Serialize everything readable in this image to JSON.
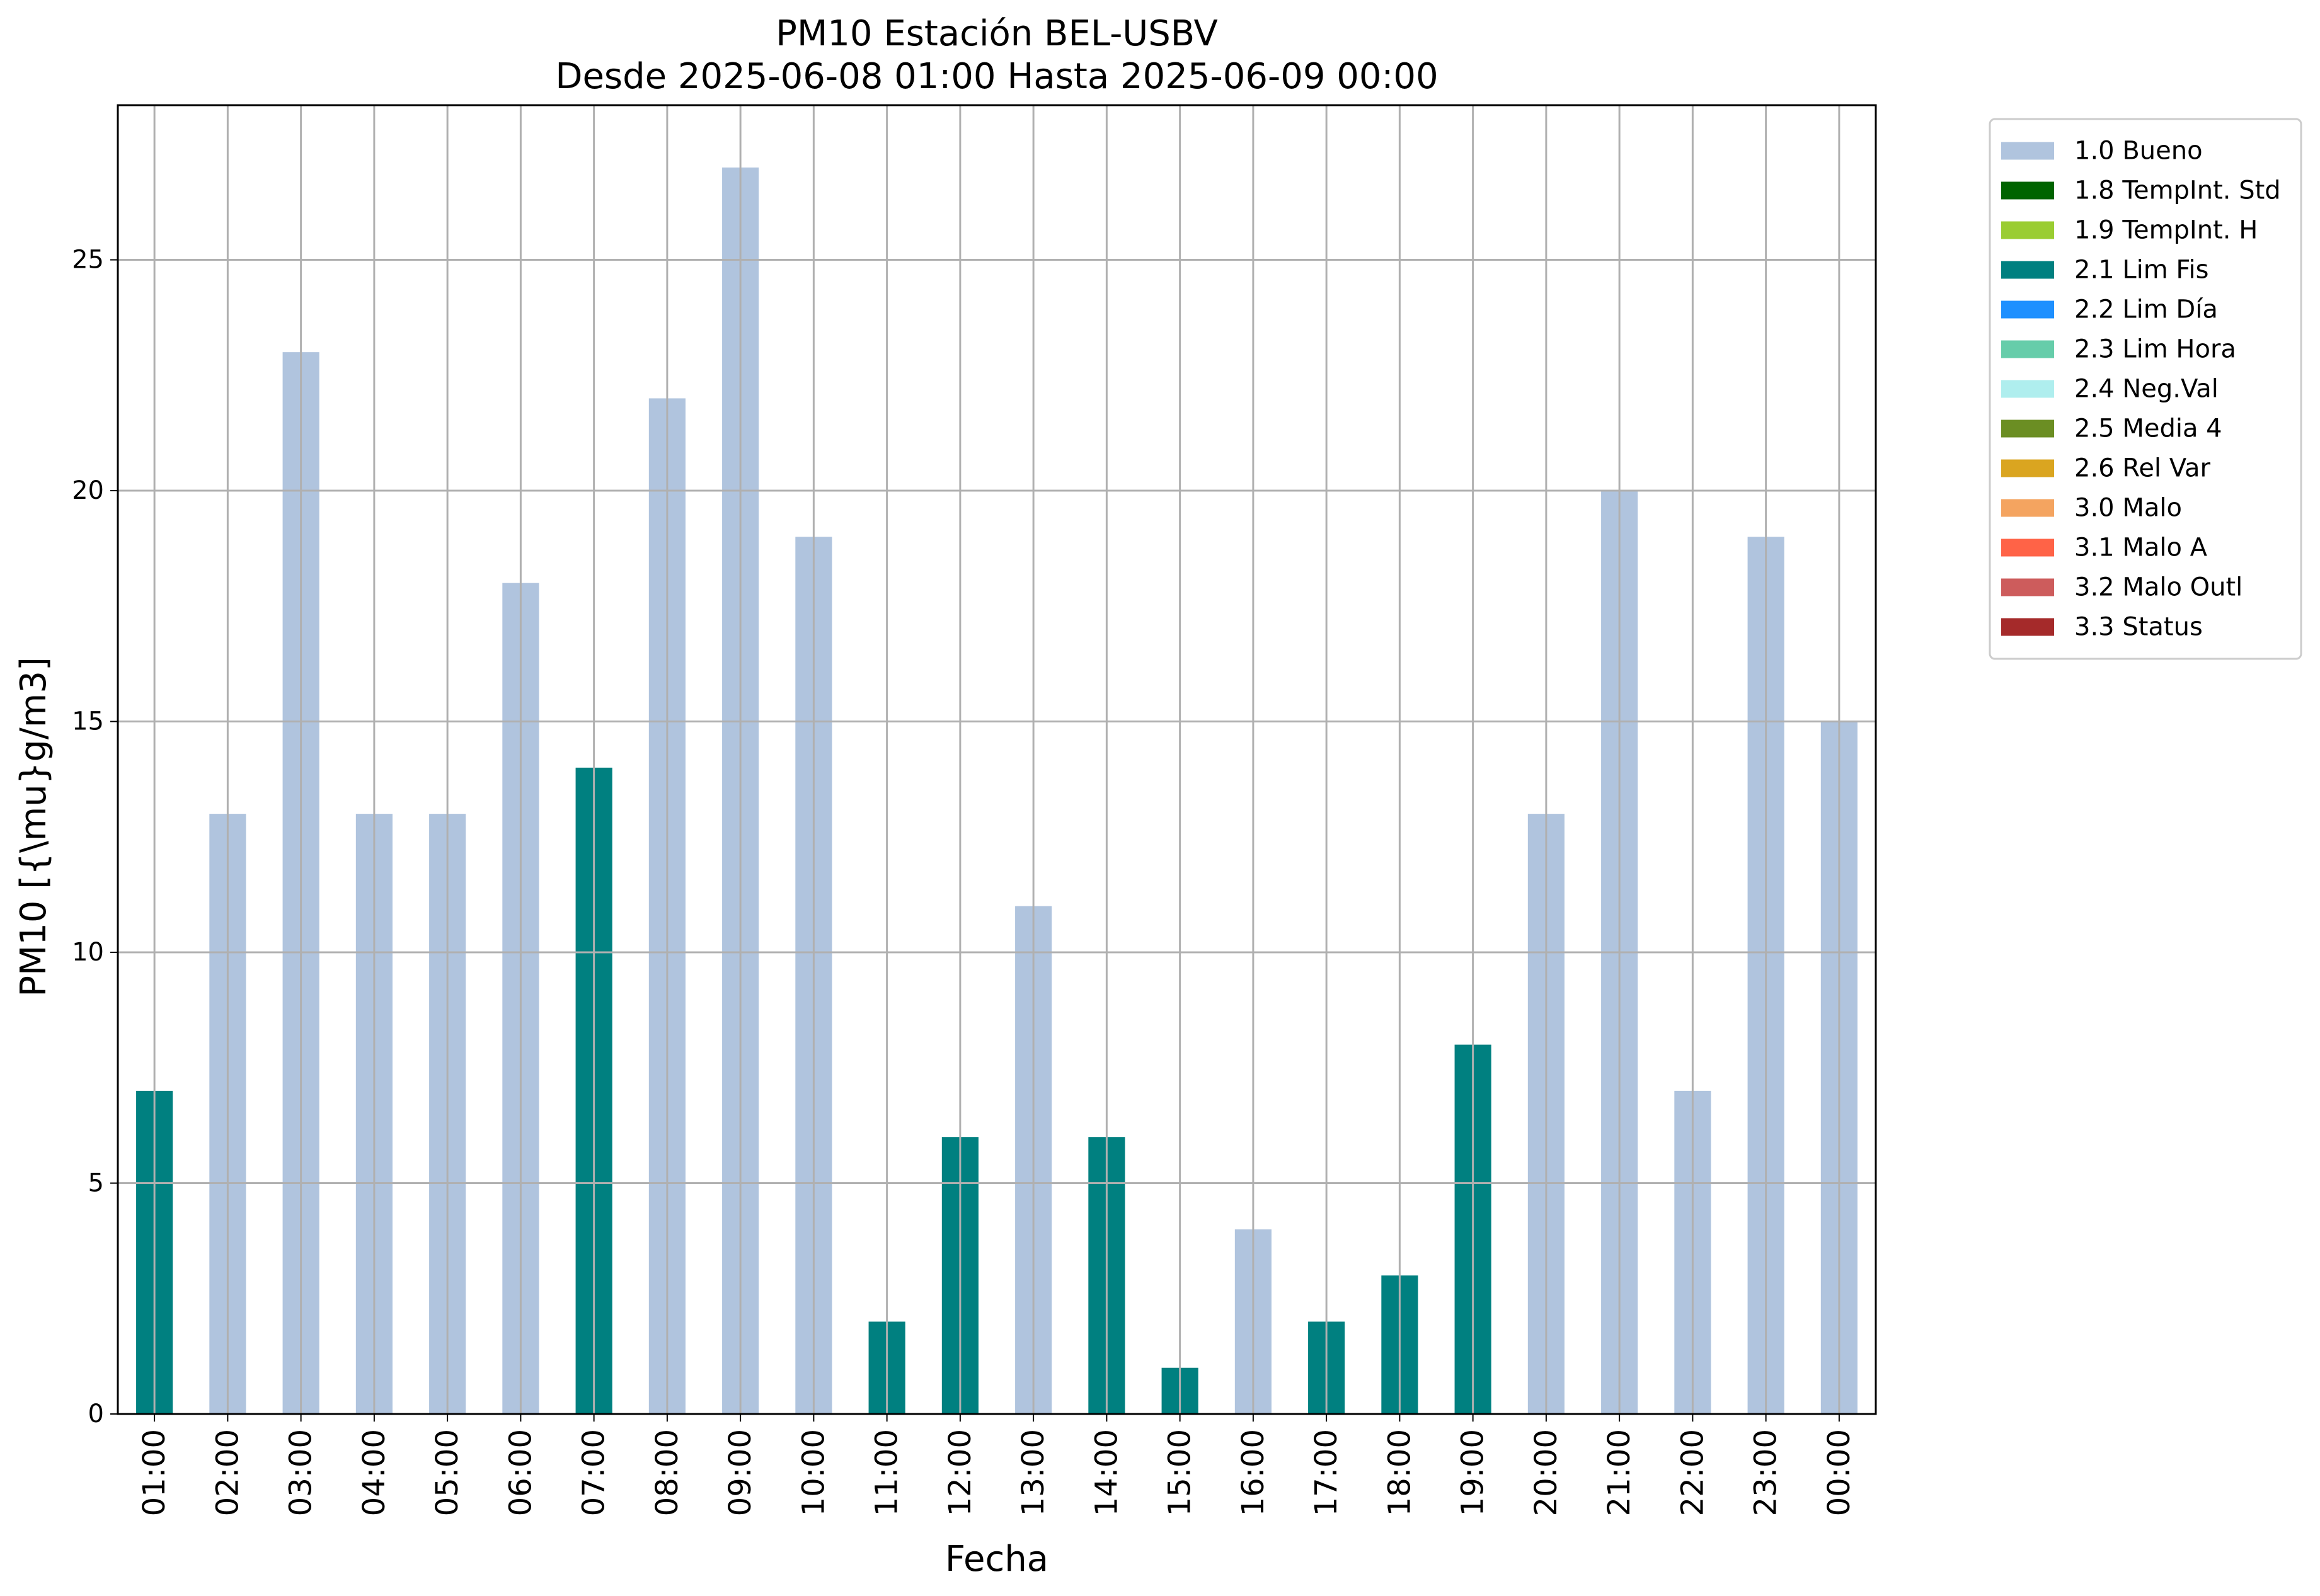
{
  "colors": {
    "grid": "#b0b0b0",
    "axes": "#000000",
    "legend_border": "#cccccc"
  },
  "chart_data": {
    "type": "bar",
    "title": "PM10 Estación BEL-USBV",
    "subtitle": "Desde 2025-06-08 01:00 Hasta 2025-06-09 00:00",
    "xlabel": "Fecha",
    "ylabel": "PM10 [{\\mu}g/m3]",
    "ylim": [
      0,
      28.35
    ],
    "yticks": [
      0,
      5,
      10,
      15,
      20,
      25
    ],
    "grid": true,
    "legend_position": "outside top-right",
    "categories": [
      "01:00",
      "02:00",
      "03:00",
      "04:00",
      "05:00",
      "06:00",
      "07:00",
      "08:00",
      "09:00",
      "10:00",
      "11:00",
      "12:00",
      "13:00",
      "14:00",
      "15:00",
      "16:00",
      "17:00",
      "18:00",
      "19:00",
      "20:00",
      "21:00",
      "22:00",
      "23:00",
      "00:00"
    ],
    "values": [
      7,
      13,
      23,
      13,
      13,
      18,
      14,
      22,
      27,
      19,
      2,
      6,
      11,
      6,
      1,
      4,
      2,
      3,
      8,
      13,
      20,
      7,
      19,
      15
    ],
    "flags": [
      "2.1 Lim Fis",
      "1.0 Bueno",
      "1.0 Bueno",
      "1.0 Bueno",
      "1.0 Bueno",
      "1.0 Bueno",
      "2.1 Lim Fis",
      "1.0 Bueno",
      "1.0 Bueno",
      "1.0 Bueno",
      "2.1 Lim Fis",
      "2.1 Lim Fis",
      "1.0 Bueno",
      "2.1 Lim Fis",
      "2.1 Lim Fis",
      "1.0 Bueno",
      "2.1 Lim Fis",
      "2.1 Lim Fis",
      "2.1 Lim Fis",
      "1.0 Bueno",
      "1.0 Bueno",
      "1.0 Bueno",
      "1.0 Bueno",
      "1.0 Bueno"
    ],
    "legend": [
      {
        "label": "1.0 Bueno",
        "color": "#b0c4de"
      },
      {
        "label": "1.8 TempInt. Std",
        "color": "#006400"
      },
      {
        "label": "1.9 TempInt. H",
        "color": "#9acd32"
      },
      {
        "label": "2.1 Lim Fis",
        "color": "#008080"
      },
      {
        "label": "2.2 Lim Día",
        "color": "#1e90ff"
      },
      {
        "label": "2.3 Lim Hora",
        "color": "#66cdaa"
      },
      {
        "label": "2.4 Neg.Val",
        "color": "#afeeee"
      },
      {
        "label": "2.5 Media 4",
        "color": "#6b8e23"
      },
      {
        "label": "2.6 Rel Var",
        "color": "#daa520"
      },
      {
        "label": "3.0 Malo",
        "color": "#f4a460"
      },
      {
        "label": "3.1 Malo A",
        "color": "#ff6347"
      },
      {
        "label": "3.2 Malo Outl",
        "color": "#cd5c5c"
      },
      {
        "label": "3.3 Status",
        "color": "#a52a2a"
      }
    ]
  }
}
